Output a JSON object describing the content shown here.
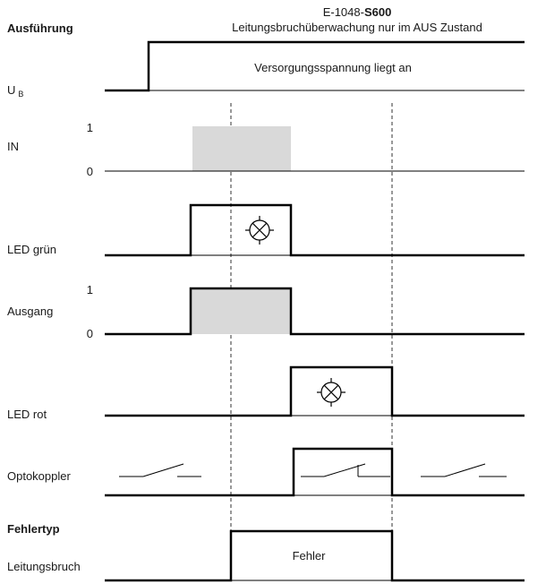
{
  "header": {
    "section_label": "Ausführung",
    "model_prefix": "E-1048-",
    "model_bold": "S600",
    "subtitle": "Leitungsbruchüberwachung nur im AUS Zustand"
  },
  "rows": {
    "ub": {
      "label_main": "U",
      "label_sub": "B",
      "annotation": "Versorgungsspannung liegt an"
    },
    "in": {
      "label": "IN",
      "level_high": "1",
      "level_low": "0"
    },
    "led_gruen": {
      "label": "LED grün"
    },
    "ausgang": {
      "label": "Ausgang",
      "level_high": "1",
      "level_low": "0"
    },
    "led_rot": {
      "label": "LED rot"
    },
    "optokoppler": {
      "label": "Optokoppler"
    },
    "fehlertyp": {
      "heading": "Fehlertyp",
      "label": "Leitungsbruch",
      "annotation": "Fehler"
    }
  },
  "icons": {
    "lamp": "lamp-icon",
    "switch_open": "switch-open-icon",
    "switch_closed": "switch-closed-icon"
  },
  "colors": {
    "signal": "#000000",
    "shade": "#d9d9d9",
    "text": "#1a1a1a"
  }
}
